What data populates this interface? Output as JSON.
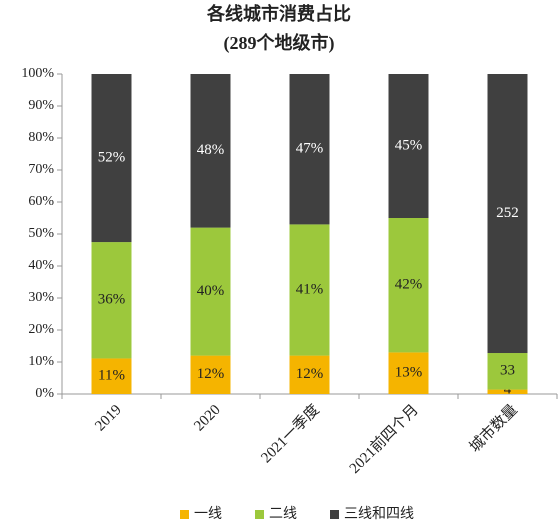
{
  "chart_data": {
    "type": "bar",
    "stack": "percent",
    "title": "各线城市消费占比",
    "subtitle": "(289个地级市)",
    "categories": [
      "2019",
      "2020",
      "2021一季度",
      "2021前四个月",
      "城市数量"
    ],
    "series": [
      {
        "name": "一线",
        "color": "#f5b400",
        "values": [
          11,
          12,
          12,
          13,
          4
        ],
        "value_labels": [
          "11%",
          "12%",
          "12%",
          "13%",
          "4"
        ]
      },
      {
        "name": "二线",
        "color": "#9cc83c",
        "values": [
          36,
          40,
          41,
          42,
          33
        ],
        "value_labels": [
          "36%",
          "40%",
          "41%",
          "42%",
          "33"
        ]
      },
      {
        "name": "三线和四线",
        "color": "#404040",
        "values": [
          52,
          48,
          47,
          45,
          252
        ],
        "value_labels": [
          "52%",
          "48%",
          "47%",
          "45%",
          "252"
        ]
      }
    ],
    "ylim": [
      0,
      100
    ],
    "yticks": [
      {
        "value": 0,
        "label": "0%"
      },
      {
        "value": 10,
        "label": "10%"
      },
      {
        "value": 20,
        "label": "20%"
      },
      {
        "value": 30,
        "label": "30%"
      },
      {
        "value": 40,
        "label": "40%"
      },
      {
        "value": 50,
        "label": "50%"
      },
      {
        "value": 60,
        "label": "60%"
      },
      {
        "value": 70,
        "label": "70%"
      },
      {
        "value": 80,
        "label": "80%"
      },
      {
        "value": 90,
        "label": "90%"
      },
      {
        "value": 100,
        "label": "100%"
      }
    ],
    "grid": false,
    "legend": "bottom"
  }
}
